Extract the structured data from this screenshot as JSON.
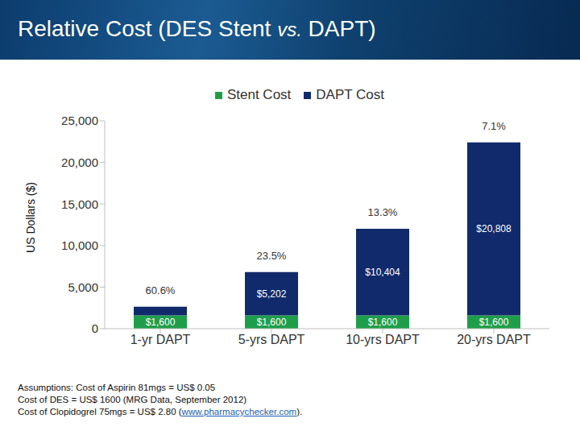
{
  "chart_data": {
    "type": "bar",
    "stacked": true,
    "title": "Relative Cost (DES Stent vs. DAPT)",
    "y_label": "US Dollars ($)",
    "categories": [
      "1-yr DAPT",
      "5-yrs DAPT",
      "10-yrs DAPT",
      "20-yrs DAPT"
    ],
    "series": [
      {
        "name": "Stent Cost",
        "color": "#1f9e4a",
        "values": [
          1600,
          1600,
          1600,
          1600
        ],
        "value_labels": [
          "$1,600",
          "$1,600",
          "$1,600",
          "$1,600"
        ]
      },
      {
        "name": "DAPT Cost",
        "color": "#112a6c",
        "values": [
          1040,
          5202,
          10404,
          20808
        ],
        "value_labels": [
          null,
          "$5,202",
          "$10,404",
          "$20,808"
        ]
      }
    ],
    "top_labels": [
      "60.6%",
      "23.5%",
      "13.3%",
      "7.1%"
    ],
    "ylim": [
      0,
      25000
    ],
    "yticks": [
      0,
      {
        "value": 5000,
        "label": "5,000"
      },
      {
        "value": 10000,
        "label": "10,000"
      },
      {
        "value": 15000,
        "label": "15,000"
      },
      {
        "value": 20000,
        "label": "20,000"
      },
      {
        "value": 25000,
        "label": "25,000"
      }
    ],
    "data_labels": true,
    "legend": "top",
    "footnotes": [
      "Assumptions: Cost of Aspirin 81mgs = US$ 0.05",
      "Cost of DES = US$ 1600 (MRG Data, September 2012)",
      "Cost of Clopidogrel 75mgs = US$ 2.80 (www.pharmacychecker.com)."
    ]
  }
}
